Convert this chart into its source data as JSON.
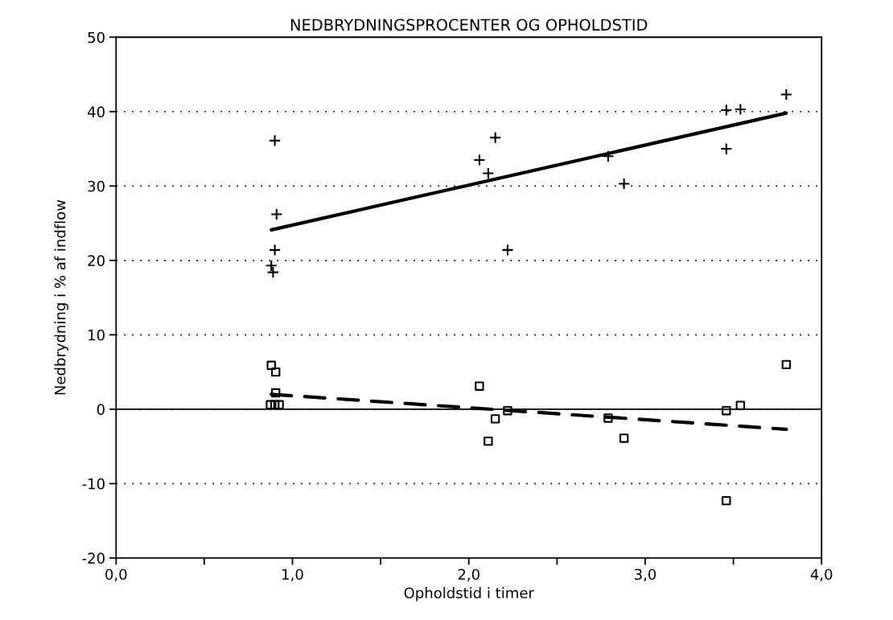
{
  "chart_data": {
    "type": "scatter",
    "title": "NEDBRYDNINGSPROCENTER OG OPHOLDSTID",
    "xlabel": "Opholdstid i timer",
    "ylabel": "Nedbrydning i % af indflow",
    "xlim": [
      0,
      4
    ],
    "ylim": [
      -20,
      50
    ],
    "xticks": [
      {
        "value": 0,
        "label": "0,0"
      },
      {
        "value": 0.5,
        "label": null
      },
      {
        "value": 1,
        "label": "1,0"
      },
      {
        "value": 1.5,
        "label": null
      },
      {
        "value": 2,
        "label": "2,0"
      },
      {
        "value": 2.5,
        "label": null
      },
      {
        "value": 3,
        "label": "3,0"
      },
      {
        "value": 3.5,
        "label": null
      },
      {
        "value": 4,
        "label": "4,0"
      }
    ],
    "yticks": [
      -20,
      -10,
      0,
      10,
      20,
      30,
      40,
      50
    ],
    "grid": "y",
    "legend": false,
    "ref_lines": [
      {
        "axis": "y",
        "value": 0,
        "color": "#000000",
        "line_style": "solid"
      }
    ],
    "series": [
      {
        "marker": "cross",
        "color": "#000000",
        "x": [
          0.9,
          0.91,
          0.9,
          0.88,
          0.89,
          2.15,
          2.06,
          2.11,
          2.79,
          2.88,
          2.22,
          3.46,
          3.46,
          3.54,
          3.8
        ],
        "values": [
          36.1,
          26.2,
          21.4,
          19.3,
          18.4,
          36.5,
          33.5,
          31.7,
          34.0,
          30.3,
          21.4,
          35.0,
          40.2,
          40.3,
          42.3
        ]
      },
      {
        "marker": "square",
        "color": "#000000",
        "x": [
          0.88,
          0.905,
          0.905,
          0.875,
          0.9,
          0.925,
          2.06,
          2.15,
          2.11,
          2.22,
          2.79,
          2.88,
          3.46,
          3.54,
          3.8,
          3.46
        ],
        "values": [
          5.9,
          5.0,
          2.2,
          0.6,
          0.6,
          0.6,
          3.1,
          -1.3,
          -4.3,
          -0.2,
          -1.2,
          -3.9,
          -0.2,
          0.5,
          6.0,
          -12.3
        ]
      },
      {
        "type": "line",
        "line_style": "solid",
        "marker": "none",
        "color": "#000000",
        "x": [
          0.88,
          3.8
        ],
        "values": [
          24.1,
          39.8
        ]
      },
      {
        "type": "line",
        "line_style": "dashed",
        "marker": "none",
        "color": "#000000",
        "x": [
          0.88,
          3.8
        ],
        "values": [
          2.0,
          -2.7
        ]
      }
    ]
  }
}
